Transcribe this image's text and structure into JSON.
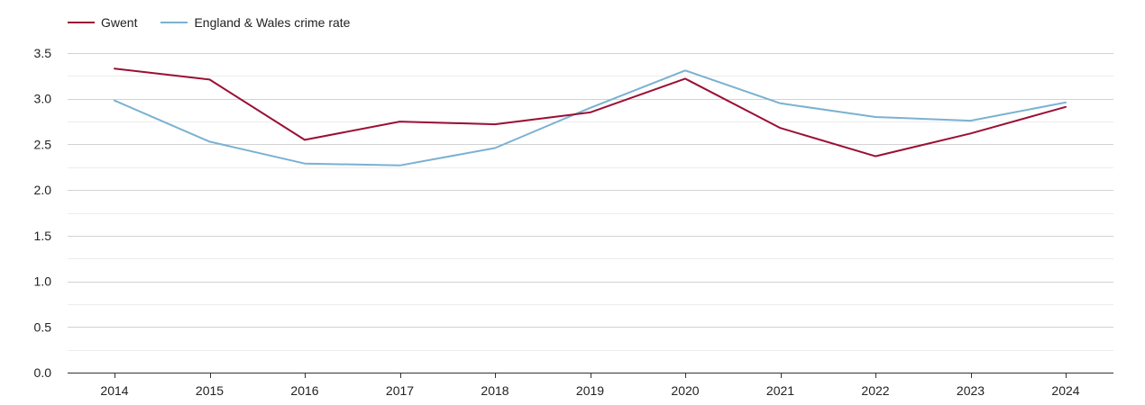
{
  "chart_data": {
    "type": "line",
    "title": "",
    "xlabel": "",
    "ylabel": "",
    "x": [
      "2014",
      "2015",
      "2016",
      "2017",
      "2018",
      "2019",
      "2020",
      "2021",
      "2022",
      "2023",
      "2024"
    ],
    "ylim": [
      0,
      3.5
    ],
    "yticks": [
      "0.0",
      "0.5",
      "1.0",
      "1.5",
      "2.0",
      "2.5",
      "3.0",
      "3.5"
    ],
    "grid": true,
    "legend_position": "top-left",
    "series": [
      {
        "name": "Gwent",
        "color": "#9b0f34",
        "values": [
          3.33,
          3.21,
          2.55,
          2.75,
          2.72,
          2.85,
          3.22,
          2.68,
          2.37,
          2.62,
          2.91
        ]
      },
      {
        "name": "England & Wales crime rate",
        "color": "#7ab1d2",
        "values": [
          2.98,
          2.53,
          2.29,
          2.27,
          2.46,
          2.9,
          3.31,
          2.95,
          2.8,
          2.76,
          2.96
        ]
      }
    ]
  }
}
